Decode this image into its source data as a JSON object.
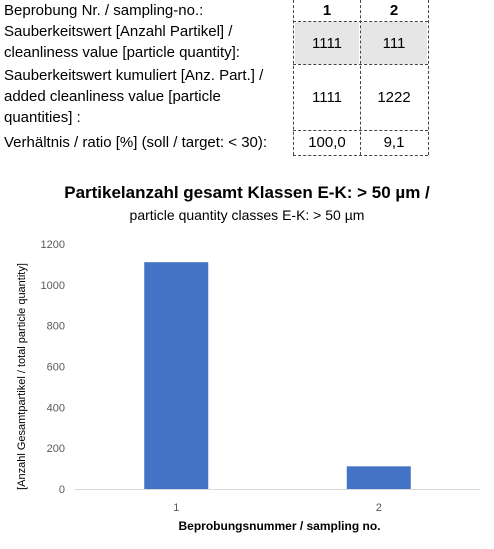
{
  "table": {
    "header_label": "Beprobung Nr. / sampling-no.:",
    "col_headers": [
      "1",
      "2"
    ],
    "rows": [
      {
        "label_lines": [
          "Sauberkeitswert [Anzahl Partikel] /",
          "cleanliness value [particle quantity]:"
        ],
        "values": [
          "1111",
          "111"
        ]
      },
      {
        "label_lines": [
          "Sauberkeitswert kumuliert [Anz. Part.] /",
          "added cleanliness value [particle",
          "quantities] :"
        ],
        "values": [
          "1111",
          "1222"
        ]
      },
      {
        "label_lines": [
          "Verhältnis / ratio [%] (soll / target: < 30):"
        ],
        "values": [
          "100,0",
          "9,1"
        ]
      }
    ]
  },
  "chart_data": {
    "type": "bar",
    "title": "Partikelanzahl gesamt Klassen E-K:  > 50 µm /",
    "subtitle": "particle quantity classes E-K: > 50 µm",
    "categories": [
      "1",
      "2"
    ],
    "values": [
      1111,
      111
    ],
    "xlabel": "Beprobungsnummer / sampling no.",
    "ylabel": "[Anzahl Gesamtpartikel / total particle quantity]",
    "ylim": [
      0,
      1200
    ],
    "yticks": [
      "0",
      "200",
      "400",
      "600",
      "800",
      "1000",
      "1200"
    ],
    "grid": false,
    "bar_color": "#4472c4"
  }
}
